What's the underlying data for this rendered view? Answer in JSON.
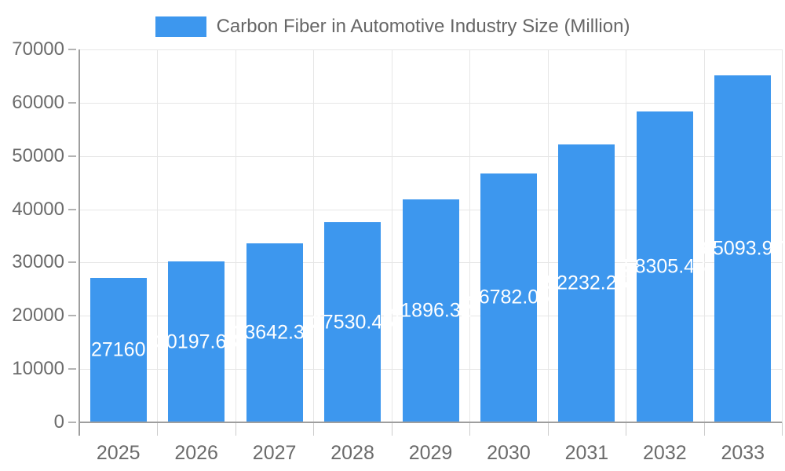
{
  "legend": {
    "label": "Carbon Fiber in Automotive Industry Size (Million)"
  },
  "colors": {
    "bar": "#3D97EE",
    "grid": "#e6e6e6",
    "axis_line": "#9e9e9e",
    "y_tick": "#b3b3b3",
    "x_tick": "#cccccc",
    "axis_text": "#6b6b6b",
    "legend_text": "#666666",
    "bar_label_text": "#ffffff",
    "background": "#ffffff"
  },
  "chart_data": {
    "type": "bar",
    "title": "Carbon Fiber in Automotive Industry Size (Million)",
    "legend_position": "top",
    "grid": true,
    "categories": [
      "2025",
      "2026",
      "2027",
      "2028",
      "2029",
      "2030",
      "2031",
      "2032",
      "2033"
    ],
    "values": [
      27160,
      30197.68,
      33642.37,
      37530.45,
      41896.32,
      46782.05,
      52232.25,
      58305.43,
      65093.97
    ],
    "bar_labels": [
      "27160",
      "30197.68",
      "33642.37",
      "37530.45",
      "41896.32",
      "46782.05",
      "52232.25",
      "58305.43",
      "65093.97"
    ],
    "xlabel": "",
    "ylabel": "",
    "ylim": [
      0,
      70000
    ],
    "ytick_step": 10000,
    "ytick_labels": [
      "0",
      "10000",
      "20000",
      "30000",
      "40000",
      "50000",
      "60000",
      "70000"
    ]
  }
}
